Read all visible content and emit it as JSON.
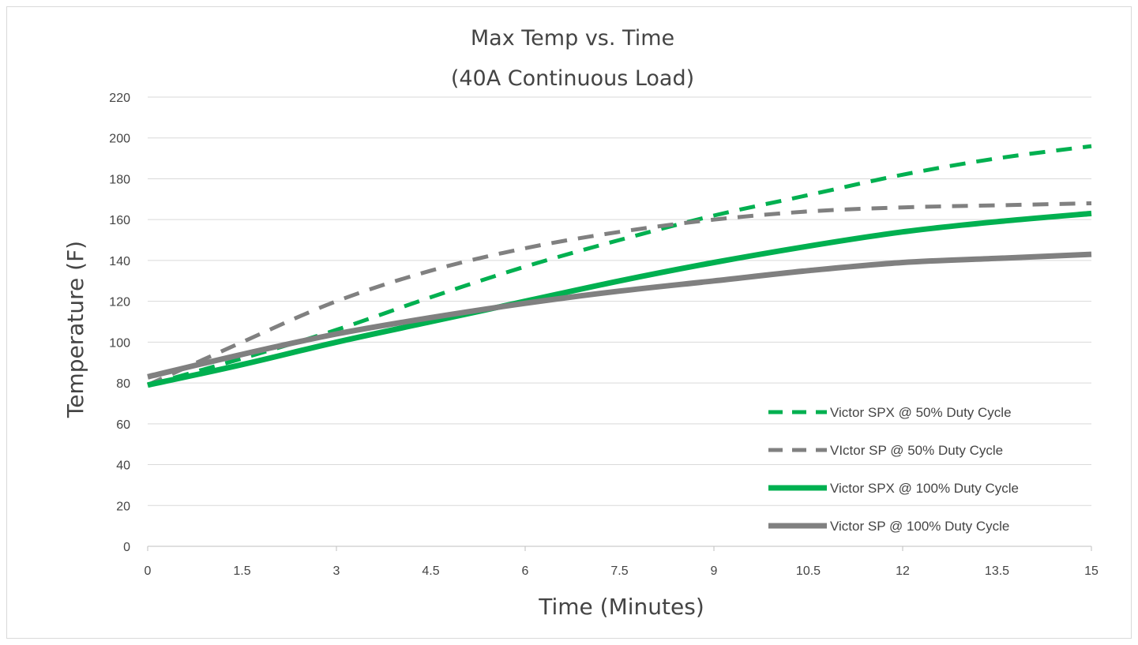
{
  "chart_data": {
    "type": "line",
    "title": "Max Temp vs. Time",
    "subtitle": "(40A Continuous Load)",
    "xlabel": "Time (Minutes)",
    "ylabel": "Temperature (F)",
    "xlim": [
      0,
      15
    ],
    "ylim": [
      0,
      220
    ],
    "x_ticks": [
      0,
      1.5,
      3,
      4.5,
      6,
      7.5,
      9,
      10.5,
      12,
      13.5,
      15
    ],
    "x_tick_labels": [
      "0",
      "1.5",
      "3",
      "4.5",
      "6",
      "7.5",
      "9",
      "10.5",
      "12",
      "13.5",
      "15"
    ],
    "y_ticks": [
      0,
      20,
      40,
      60,
      80,
      100,
      120,
      140,
      160,
      180,
      200,
      220
    ],
    "y_tick_labels": [
      "0",
      "20",
      "40",
      "60",
      "80",
      "100",
      "120",
      "140",
      "160",
      "180",
      "200",
      "220"
    ],
    "grid": "horizontal",
    "legend_position": "bottom-right",
    "series": [
      {
        "name": "Victor SPX @ 50% Duty Cycle",
        "color": "#00b050",
        "style": "dashed",
        "x": [
          0,
          1.5,
          3,
          4.5,
          6,
          7.5,
          9,
          10.5,
          12,
          13.5,
          15
        ],
        "y": [
          79,
          92,
          106,
          122,
          137,
          150,
          162,
          172,
          182,
          190,
          196
        ]
      },
      {
        "name": "VIctor SP @ 50% Duty Cycle",
        "color": "#808080",
        "style": "dashed",
        "x": [
          0,
          1.5,
          3,
          4.5,
          6,
          7.5,
          9,
          10.5,
          12,
          13.5,
          15
        ],
        "y": [
          79,
          100,
          120,
          135,
          146,
          154,
          160,
          164,
          166,
          167,
          168
        ]
      },
      {
        "name": "Victor SPX @ 100% Duty Cycle",
        "color": "#00b050",
        "style": "solid",
        "x": [
          0,
          1.5,
          3,
          4.5,
          6,
          7.5,
          9,
          10.5,
          12,
          13.5,
          15
        ],
        "y": [
          79,
          89,
          100,
          110,
          120,
          130,
          139,
          147,
          154,
          159,
          163
        ]
      },
      {
        "name": "Victor SP @ 100% Duty Cycle",
        "color": "#808080",
        "style": "solid",
        "x": [
          0,
          1.5,
          3,
          4.5,
          6,
          7.5,
          9,
          10.5,
          12,
          13.5,
          15
        ],
        "y": [
          83,
          94,
          104,
          112,
          119,
          125,
          130,
          135,
          139,
          141,
          143
        ]
      }
    ]
  }
}
